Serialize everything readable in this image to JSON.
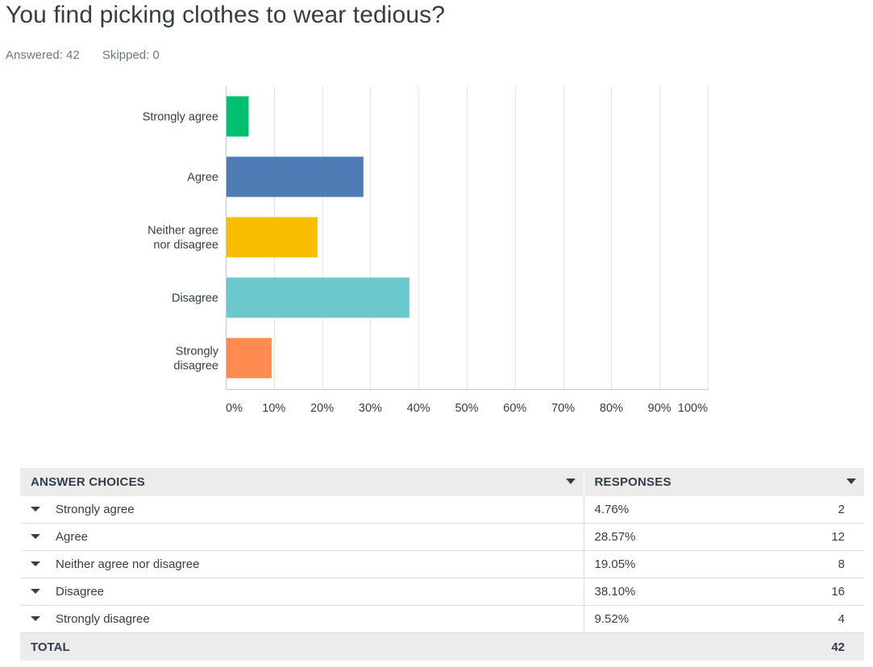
{
  "question": {
    "title": "You find picking clothes to wear tedious?",
    "answered": "Answered: 42",
    "skipped": "Skipped: 0"
  },
  "chart_data": {
    "type": "bar",
    "orientation": "horizontal",
    "categories": [
      "Strongly agree",
      "Agree",
      "Neither agree nor disagree",
      "Disagree",
      "Strongly disagree"
    ],
    "category_lines": [
      [
        "Strongly agree"
      ],
      [
        "Agree"
      ],
      [
        "Neither agree",
        "nor disagree"
      ],
      [
        "Disagree"
      ],
      [
        "Strongly",
        "disagree"
      ]
    ],
    "values": [
      4.76,
      28.57,
      19.05,
      38.1,
      9.52
    ],
    "colors": [
      "#00bf6f",
      "#507cb6",
      "#f9be00",
      "#6bc8cd",
      "#ff8b4f"
    ],
    "xlim": [
      0,
      100
    ],
    "ticks": [
      0,
      10,
      20,
      30,
      40,
      50,
      60,
      70,
      80,
      90,
      100
    ],
    "tick_labels": [
      "0%",
      "10%",
      "20%",
      "30%",
      "40%",
      "50%",
      "60%",
      "70%",
      "80%",
      "90%",
      "100%"
    ],
    "grid": true
  },
  "table": {
    "headers": {
      "choices": "ANSWER CHOICES",
      "responses": "RESPONSES"
    },
    "rows": [
      {
        "choice": "Strongly agree",
        "percent": "4.76%",
        "count": "2"
      },
      {
        "choice": "Agree",
        "percent": "28.57%",
        "count": "12"
      },
      {
        "choice": "Neither agree nor disagree",
        "percent": "19.05%",
        "count": "8"
      },
      {
        "choice": "Disagree",
        "percent": "38.10%",
        "count": "16"
      },
      {
        "choice": "Strongly disagree",
        "percent": "9.52%",
        "count": "4"
      }
    ],
    "total": {
      "label": "TOTAL",
      "count": "42"
    }
  }
}
